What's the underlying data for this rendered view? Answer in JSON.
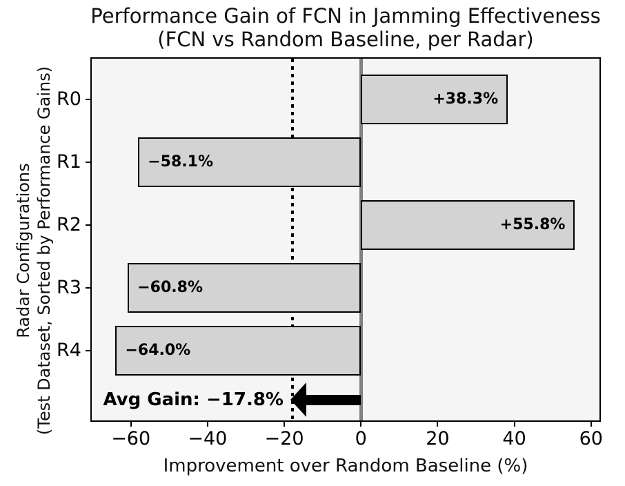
{
  "header": {
    "title_line1": "Performance Gain of FCN in Jamming Effectiveness",
    "title_line2": "(FCN vs Random Baseline, per Radar)"
  },
  "chart_data": {
    "type": "bar",
    "orientation": "horizontal",
    "title": "Performance Gain of FCN in Jamming Effectiveness (FCN vs Random Baseline, per Radar)",
    "xlabel": "Improvement over Random Baseline (%)",
    "ylabel_line1": "Radar Configurations",
    "ylabel_line2": "(Test Dataset, Sorted by Performance Gains)",
    "categories": [
      "R0",
      "R1",
      "R2",
      "R3",
      "R4"
    ],
    "values": [
      38.3,
      -58.1,
      55.8,
      -60.8,
      -64.0
    ],
    "bar_labels": [
      "+38.3%",
      "−58.1%",
      "+55.8%",
      "−60.8%",
      "−64.0%"
    ],
    "xlim": [
      -70.2,
      62.2
    ],
    "xticks": [
      -60,
      -40,
      -20,
      0,
      20,
      40,
      60
    ],
    "xtick_labels": [
      "−60",
      "−40",
      "−20",
      "0",
      "20",
      "40",
      "60"
    ],
    "zero_line_value": 0,
    "avg_line_value": -17.8,
    "annotation_label": "Avg Gain: −17.8%",
    "grid": false,
    "legend": null,
    "colors": {
      "bar_fill": "#d3d3d3",
      "bar_edge": "#000000",
      "plot_bg": "#f5f5f5",
      "figure_bg": "#ffffff",
      "zero_line": "#808080",
      "avg_line": "#000000",
      "arrow": "#000000",
      "text": "#000000"
    }
  }
}
